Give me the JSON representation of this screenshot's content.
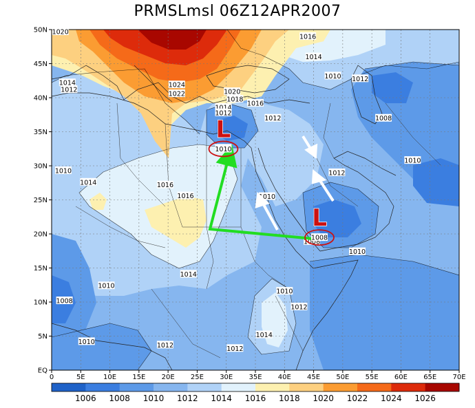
{
  "title": "PRMSLmsl  06Z12APR2007",
  "map": {
    "lon_range": [
      0,
      70
    ],
    "lat_range": [
      0,
      50
    ],
    "lat_ticks": [
      "50N",
      "45N",
      "40N",
      "35N",
      "30N",
      "25N",
      "20N",
      "15N",
      "10N",
      "5N",
      "EQ"
    ],
    "lon_ticks": [
      "0",
      "5E",
      "10E",
      "15E",
      "20E",
      "25E",
      "30E",
      "35E",
      "40E",
      "45E",
      "50E",
      "55E",
      "60E",
      "65E",
      "70E"
    ]
  },
  "contour_labels": [
    {
      "text": "1020",
      "lon": 1.5,
      "lat": 49.7
    },
    {
      "text": "1016",
      "lon": 44.0,
      "lat": 49.0
    },
    {
      "text": "1014",
      "lon": 45.0,
      "lat": 46.0
    },
    {
      "text": "1014",
      "lon": 2.7,
      "lat": 42.2
    },
    {
      "text": "1012",
      "lon": 3.0,
      "lat": 41.2
    },
    {
      "text": "1024",
      "lon": 21.5,
      "lat": 41.9
    },
    {
      "text": "1022",
      "lon": 21.5,
      "lat": 40.6
    },
    {
      "text": "1020",
      "lon": 31.0,
      "lat": 40.9
    },
    {
      "text": "1018",
      "lon": 31.5,
      "lat": 39.8
    },
    {
      "text": "1016",
      "lon": 35.0,
      "lat": 39.2
    },
    {
      "text": "1014",
      "lon": 29.5,
      "lat": 38.6
    },
    {
      "text": "1012",
      "lon": 29.5,
      "lat": 37.8
    },
    {
      "text": "1010",
      "lon": 48.3,
      "lat": 43.2
    },
    {
      "text": "1012",
      "lon": 53.0,
      "lat": 42.8
    },
    {
      "text": "1008",
      "lon": 57.0,
      "lat": 37.0
    },
    {
      "text": "1012",
      "lon": 38.0,
      "lat": 37.0
    },
    {
      "text": "1010",
      "lon": 29.5,
      "lat": 32.6
    },
    {
      "text": "1010",
      "lon": 2.0,
      "lat": 29.3
    },
    {
      "text": "1014",
      "lon": 6.3,
      "lat": 27.6
    },
    {
      "text": "1016",
      "lon": 19.5,
      "lat": 27.2
    },
    {
      "text": "1016",
      "lon": 23.0,
      "lat": 25.6
    },
    {
      "text": "1010",
      "lon": 37.0,
      "lat": 25.5
    },
    {
      "text": "1012",
      "lon": 49.0,
      "lat": 29.0
    },
    {
      "text": "1010",
      "lon": 62.0,
      "lat": 30.8
    },
    {
      "text": "1008",
      "lon": 44.7,
      "lat": 18.9
    },
    {
      "text": "1010",
      "lon": 52.5,
      "lat": 17.4
    },
    {
      "text": "1014",
      "lon": 23.5,
      "lat": 14.1
    },
    {
      "text": "1010",
      "lon": 9.4,
      "lat": 12.4
    },
    {
      "text": "1010",
      "lon": 40.0,
      "lat": 11.6
    },
    {
      "text": "1008",
      "lon": 2.2,
      "lat": 10.2
    },
    {
      "text": "1012",
      "lon": 42.5,
      "lat": 9.3
    },
    {
      "text": "1014",
      "lon": 36.5,
      "lat": 5.2
    },
    {
      "text": "1010",
      "lon": 6.0,
      "lat": 4.2
    },
    {
      "text": "1012",
      "lon": 19.5,
      "lat": 3.7
    },
    {
      "text": "1012",
      "lon": 31.5,
      "lat": 3.2
    }
  ],
  "low_centers": [
    {
      "label": "L",
      "value": "1010",
      "lon": 29.5,
      "lat": 34.5
    },
    {
      "label": "L",
      "value": "1008",
      "lon": 46.0,
      "lat": 21.5
    }
  ],
  "colorbar": {
    "labels": [
      "1006",
      "1008",
      "1010",
      "1012",
      "1014",
      "1016",
      "1018",
      "1020",
      "1022",
      "1024",
      "1026"
    ],
    "colors": [
      "#1f62c8",
      "#3b7ee0",
      "#5d9ae8",
      "#86b6ef",
      "#b0d2f7",
      "#e2f2fc",
      "#fdf0b0",
      "#fdd080",
      "#fb9c32",
      "#f56a19",
      "#dd2b0b",
      "#a80700"
    ]
  },
  "colors": {
    "low_marker": "#cc1111",
    "track_arrow": "#22dd22",
    "flow_arrow": "#ffffff"
  }
}
